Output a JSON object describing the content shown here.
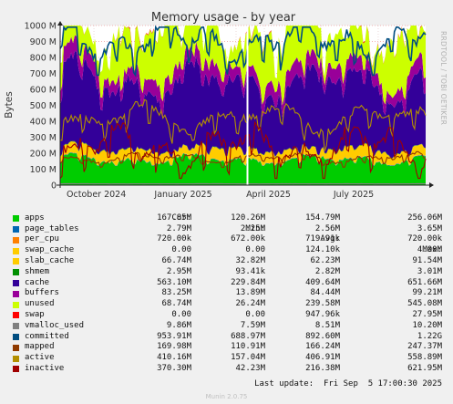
{
  "chart_data": {
    "type": "area",
    "title": "Memory usage - by year",
    "ylabel": "Bytes",
    "side_label": "RRDTOOL / TOBI OETIKER",
    "ylim": [
      0,
      1000000000
    ],
    "yticks": [
      "0",
      "100 M",
      "200 M",
      "300 M",
      "400 M",
      "500 M",
      "600 M",
      "700 M",
      "800 M",
      "900 M",
      "1000 M"
    ],
    "xticks": [
      "October 2024",
      "January 2025",
      "April 2025",
      "July 2025"
    ],
    "grid": true,
    "columns": [
      "Cur:",
      "Min:",
      "Avg:",
      "Max:"
    ],
    "series": [
      {
        "name": "apps",
        "color": "#00cc00",
        "cur": "167.85M",
        "min": "120.26M",
        "avg": "154.79M",
        "max": "256.06M"
      },
      {
        "name": "page_tables",
        "color": "#0066b3",
        "cur": "2.79M",
        "min": "2.25M",
        "avg": "2.56M",
        "max": "3.65M"
      },
      {
        "name": "per_cpu",
        "color": "#ff8000",
        "cur": "720.00k",
        "min": "672.00k",
        "avg": "719.91k",
        "max": "720.00k"
      },
      {
        "name": "swap_cache",
        "color": "#ffcc00",
        "cur": "0.00",
        "min": "0.00",
        "avg": "124.10k",
        "max": "4.00M"
      },
      {
        "name": "slab_cache",
        "color": "#ffcc00",
        "cur": "66.74M",
        "min": "32.82M",
        "avg": "62.23M",
        "max": "91.54M"
      },
      {
        "name": "shmem",
        "color": "#008f00",
        "cur": "2.95M",
        "min": "93.41k",
        "avg": "2.82M",
        "max": "3.01M"
      },
      {
        "name": "cache",
        "color": "#330099",
        "cur": "563.10M",
        "min": "229.84M",
        "avg": "409.64M",
        "max": "651.66M"
      },
      {
        "name": "buffers",
        "color": "#990099",
        "cur": "83.25M",
        "min": "13.89M",
        "avg": "84.44M",
        "max": "99.21M"
      },
      {
        "name": "unused",
        "color": "#ccff00",
        "cur": "68.74M",
        "min": "26.24M",
        "avg": "239.58M",
        "max": "545.08M"
      },
      {
        "name": "swap",
        "color": "#ff0000",
        "cur": "0.00",
        "min": "0.00",
        "avg": "947.96k",
        "max": "27.95M"
      },
      {
        "name": "vmalloc_used",
        "color": "#808080",
        "cur": "9.86M",
        "min": "7.59M",
        "avg": "8.51M",
        "max": "10.20M"
      },
      {
        "name": "committed",
        "color": "#004d80",
        "cur": "953.91M",
        "min": "688.97M",
        "avg": "892.60M",
        "max": "1.22G"
      },
      {
        "name": "mapped",
        "color": "#8f3a00",
        "cur": "169.98M",
        "min": "110.91M",
        "avg": "166.24M",
        "max": "247.37M"
      },
      {
        "name": "active",
        "color": "#b38f00",
        "cur": "410.16M",
        "min": "157.04M",
        "avg": "406.91M",
        "max": "558.89M"
      },
      {
        "name": "inactive",
        "color": "#a00000",
        "cur": "370.30M",
        "min": "42.23M",
        "avg": "216.38M",
        "max": "621.95M"
      }
    ]
  },
  "footer": {
    "last_update": "Last update:  Fri Sep  5 17:00:30 2025",
    "munin": "Munin 2.0.75"
  }
}
